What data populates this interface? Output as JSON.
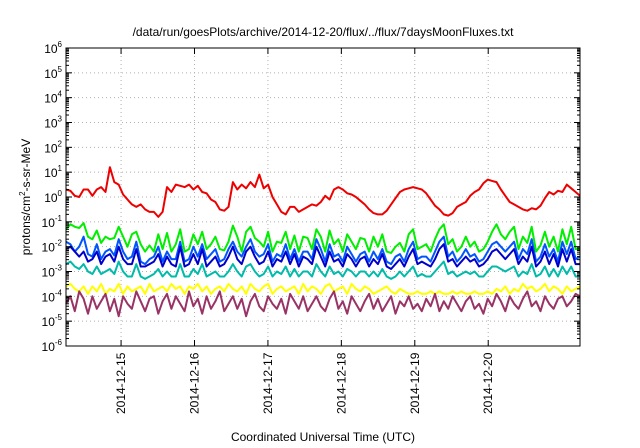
{
  "chart_data": {
    "type": "line",
    "title": "/data/run/goesPlots/archive/2014-12-20/flux/../flux/7daysMoonFluxes.txt",
    "xlabel": "Coordinated Universal Time (UTC)",
    "ylabel": "protons/cm²-s-sr-MeV",
    "ylabel_parts": [
      "protons/cm",
      "2",
      "-s-sr-MeV"
    ],
    "yscale": "log",
    "ylim": [
      1e-06,
      1000000.0
    ],
    "xlim": [
      0,
      7
    ],
    "x_start_tick_offset": 0.75,
    "y_ticks": [
      {
        "exp": "-6",
        "value": 1e-06
      },
      {
        "exp": "-5",
        "value": 1e-05
      },
      {
        "exp": "-4",
        "value": 0.0001
      },
      {
        "exp": "-3",
        "value": 0.001
      },
      {
        "exp": "-2",
        "value": 0.01
      },
      {
        "exp": "-1",
        "value": 0.1
      },
      {
        "exp": "0",
        "value": 1
      },
      {
        "exp": "1",
        "value": 10
      },
      {
        "exp": "2",
        "value": 100
      },
      {
        "exp": "3",
        "value": 1000
      },
      {
        "exp": "4",
        "value": 10000
      },
      {
        "exp": "5",
        "value": 100000
      },
      {
        "exp": "6",
        "value": 1000000
      }
    ],
    "y_tick_base": "10",
    "x_tick_labels": [
      "2014-12-15",
      "2014-12-16",
      "2014-12-17",
      "2014-12-18",
      "2014-12-19",
      "2014-12-20"
    ],
    "grid": true,
    "legend": "none",
    "series": [
      {
        "color": "#ee0000",
        "log_values": [
          0.3,
          0.25,
          0.05,
          0.0,
          0.3,
          0.3,
          0.05,
          0.3,
          0.4,
          0.2,
          1.2,
          0.6,
          0.5,
          0.1,
          -0.1,
          -0.3,
          -0.4,
          -0.3,
          -0.5,
          -0.6,
          -0.6,
          -0.8,
          -0.6,
          0.4,
          0.2,
          0.5,
          0.45,
          0.4,
          0.5,
          0.3,
          0.45,
          0.2,
          0.15,
          -0.1,
          -0.2,
          -0.5,
          -0.55,
          -0.4,
          0.6,
          0.3,
          0.5,
          0.35,
          0.6,
          0.4,
          0.9,
          0.35,
          0.5,
          0.0,
          -0.3,
          -0.6,
          -0.7,
          -0.4,
          -0.4,
          -0.6,
          -0.5,
          -0.4,
          -0.3,
          -0.35,
          -0.2,
          0.05,
          -0.1,
          0.3,
          0.4,
          0.3,
          0.15,
          0.1,
          0.0,
          -0.15,
          -0.3,
          -0.5,
          -0.65,
          -0.7,
          -0.7,
          -0.55,
          -0.3,
          -0.05,
          0.2,
          0.3,
          0.35,
          0.4,
          0.35,
          0.3,
          0.15,
          -0.1,
          -0.35,
          -0.5,
          -0.7,
          -0.75,
          -0.65,
          -0.4,
          -0.3,
          -0.2,
          0.05,
          0.2,
          0.3,
          0.55,
          0.7,
          0.65,
          0.6,
          0.3,
          0.05,
          -0.2,
          -0.3,
          -0.4,
          -0.5,
          -0.55,
          -0.45,
          -0.5,
          -0.35,
          -0.05,
          0.2,
          0.1,
          0.25,
          0.2,
          0.5,
          0.35,
          0.2,
          0.05
        ]
      },
      {
        "color": "#00ee00",
        "log_values": [
          -1.3,
          -1.1,
          -1.2,
          -1.25,
          -1.05,
          -1.6,
          -1.7,
          -1.35,
          -1.85,
          -1.6,
          -1.7,
          -1.65,
          -1.2,
          -1.6,
          -2.0,
          -1.5,
          -1.4,
          -1.9,
          -2.2,
          -1.95,
          -2.2,
          -1.5,
          -2.1,
          -1.45,
          -2.2,
          -1.9,
          -1.3,
          -2.2,
          -2.1,
          -1.5,
          -1.9,
          -1.4,
          -2.1,
          -1.9,
          -1.6,
          -2.1,
          -2.15,
          -1.8,
          -1.15,
          -1.6,
          -2.2,
          -1.4,
          -1.2,
          -1.65,
          -1.8,
          -2.0,
          -1.4,
          -2.2,
          -1.8,
          -1.85,
          -1.4,
          -2.1,
          -1.55,
          -2.2,
          -1.6,
          -1.65,
          -2.1,
          -1.3,
          -1.6,
          -2.2,
          -1.35,
          -1.9,
          -1.7,
          -2.2,
          -1.5,
          -1.8,
          -2.1,
          -1.65,
          -1.7,
          -2.2,
          -1.6,
          -2.0,
          -1.5,
          -2.2,
          -2.25,
          -2.0,
          -1.85,
          -2.2,
          -1.5,
          -1.3,
          -2.1,
          -2.0,
          -1.9,
          -2.2,
          -1.7,
          -1.3,
          -1.1,
          -1.9,
          -1.7,
          -2.2,
          -2.0,
          -1.6,
          -2.0,
          -1.8,
          -2.2,
          -2.1,
          -1.8,
          -1.4,
          -1.1,
          -1.5,
          -1.7,
          -1.4,
          -1.2,
          -2.1,
          -1.6,
          -1.85,
          -1.2,
          -2.2,
          -1.95,
          -1.4,
          -2.0,
          -1.6,
          -2.2,
          -1.3,
          -1.9,
          -1.2,
          -2.1,
          -2.1
        ]
      },
      {
        "color": "#0055ff",
        "log_values": [
          -1.8,
          -1.9,
          -2.2,
          -2.0,
          -1.6,
          -2.3,
          -2.4,
          -1.9,
          -2.5,
          -2.2,
          -2.1,
          -2.35,
          -1.7,
          -2.2,
          -2.5,
          -2.4,
          -1.8,
          -2.6,
          -2.7,
          -2.5,
          -2.4,
          -2.0,
          -2.6,
          -2.2,
          -2.5,
          -2.5,
          -1.8,
          -2.6,
          -2.5,
          -2.0,
          -2.4,
          -1.9,
          -2.5,
          -2.3,
          -2.1,
          -2.6,
          -2.5,
          -2.1,
          -1.8,
          -2.2,
          -2.4,
          -2.0,
          -1.7,
          -2.2,
          -2.4,
          -2.3,
          -1.9,
          -2.6,
          -2.3,
          -2.4,
          -1.9,
          -2.5,
          -2.1,
          -2.6,
          -2.2,
          -2.2,
          -2.5,
          -1.7,
          -2.1,
          -2.6,
          -1.9,
          -2.4,
          -2.3,
          -2.6,
          -2.0,
          -2.3,
          -2.6,
          -2.3,
          -2.2,
          -2.6,
          -2.2,
          -2.5,
          -2.1,
          -2.6,
          -2.7,
          -2.4,
          -2.3,
          -2.6,
          -2.1,
          -1.8,
          -2.5,
          -2.4,
          -2.4,
          -2.6,
          -2.2,
          -1.8,
          -1.6,
          -2.4,
          -2.2,
          -2.6,
          -2.4,
          -2.1,
          -2.4,
          -2.3,
          -2.6,
          -2.5,
          -2.2,
          -1.9,
          -1.8,
          -2.0,
          -2.2,
          -2.0,
          -1.8,
          -2.5,
          -2.1,
          -2.3,
          -1.7,
          -2.6,
          -2.4,
          -1.9,
          -2.4,
          -2.1,
          -2.6,
          -1.8,
          -2.3,
          -1.8,
          -2.5,
          -2.4
        ]
      },
      {
        "color": "#0000cc",
        "log_values": [
          -2.1,
          -2.0,
          -2.2,
          -2.4,
          -2.2,
          -2.6,
          -2.5,
          -2.2,
          -2.7,
          -2.4,
          -2.3,
          -2.6,
          -2.0,
          -2.5,
          -2.7,
          -2.7,
          -2.1,
          -2.8,
          -2.8,
          -2.7,
          -2.6,
          -2.3,
          -2.8,
          -2.4,
          -2.7,
          -2.8,
          -2.0,
          -2.8,
          -2.7,
          -2.3,
          -2.7,
          -2.1,
          -2.8,
          -2.6,
          -2.4,
          -2.8,
          -2.7,
          -2.4,
          -2.0,
          -2.5,
          -2.7,
          -2.2,
          -2.0,
          -2.4,
          -2.7,
          -2.6,
          -2.2,
          -2.8,
          -2.5,
          -2.6,
          -2.2,
          -2.7,
          -2.3,
          -2.8,
          -2.4,
          -2.5,
          -2.7,
          -2.0,
          -2.4,
          -2.8,
          -2.2,
          -2.6,
          -2.5,
          -2.8,
          -2.3,
          -2.5,
          -2.8,
          -2.5,
          -2.4,
          -2.8,
          -2.5,
          -2.7,
          -2.3,
          -2.8,
          -2.9,
          -2.7,
          -2.5,
          -2.8,
          -2.4,
          -2.1,
          -2.7,
          -2.6,
          -2.7,
          -2.8,
          -2.5,
          -2.1,
          -1.9,
          -2.6,
          -2.5,
          -2.8,
          -2.6,
          -2.4,
          -2.6,
          -2.5,
          -2.8,
          -2.7,
          -2.5,
          -2.2,
          -2.1,
          -2.3,
          -2.5,
          -2.3,
          -2.1,
          -2.7,
          -2.4,
          -2.6,
          -2.0,
          -2.8,
          -2.6,
          -2.2,
          -2.7,
          -2.3,
          -2.8,
          -2.1,
          -2.6,
          -2.1,
          -2.7,
          -2.7
        ]
      },
      {
        "color": "#00bbaa",
        "log_values": [
          -2.7,
          -2.6,
          -2.8,
          -2.9,
          -2.7,
          -3.0,
          -3.1,
          -2.8,
          -3.1,
          -3.0,
          -2.9,
          -3.1,
          -2.6,
          -3.0,
          -3.2,
          -3.2,
          -2.7,
          -3.2,
          -3.3,
          -3.2,
          -3.1,
          -2.9,
          -3.2,
          -3.0,
          -3.2,
          -3.2,
          -2.7,
          -3.2,
          -3.2,
          -2.9,
          -3.1,
          -2.7,
          -3.2,
          -3.1,
          -3.0,
          -3.2,
          -3.2,
          -3.0,
          -2.7,
          -3.0,
          -3.2,
          -2.8,
          -2.7,
          -3.0,
          -3.2,
          -3.1,
          -2.8,
          -3.2,
          -3.0,
          -3.1,
          -2.8,
          -3.2,
          -2.9,
          -3.2,
          -3.0,
          -3.0,
          -3.2,
          -2.7,
          -3.0,
          -3.2,
          -2.8,
          -3.1,
          -3.0,
          -3.2,
          -2.9,
          -3.0,
          -3.2,
          -3.0,
          -3.0,
          -3.2,
          -3.0,
          -3.2,
          -2.9,
          -3.2,
          -3.3,
          -3.2,
          -3.0,
          -3.2,
          -3.0,
          -2.8,
          -3.2,
          -3.1,
          -3.2,
          -3.2,
          -3.0,
          -2.8,
          -2.6,
          -3.1,
          -3.0,
          -3.2,
          -3.1,
          -3.0,
          -3.1,
          -3.0,
          -3.2,
          -3.2,
          -3.0,
          -2.8,
          -2.8,
          -2.9,
          -3.0,
          -2.9,
          -2.8,
          -3.2,
          -3.0,
          -3.1,
          -2.7,
          -3.2,
          -3.1,
          -2.8,
          -3.2,
          -2.9,
          -3.2,
          -2.8,
          -3.1,
          -2.8,
          -3.2,
          -3.2
        ]
      },
      {
        "color": "#ffff00",
        "log_values": [
          -3.6,
          -3.5,
          -3.7,
          -3.8,
          -3.6,
          -3.9,
          -3.6,
          -3.8,
          -3.5,
          -3.9,
          -3.7,
          -3.8,
          -3.5,
          -3.9,
          -3.6,
          -3.8,
          -3.7,
          -3.6,
          -3.9,
          -3.5,
          -3.8,
          -3.7,
          -3.6,
          -3.8,
          -3.5,
          -3.7,
          -3.6,
          -3.9,
          -3.6,
          -3.7,
          -3.5,
          -3.8,
          -3.6,
          -3.9,
          -3.7,
          -3.6,
          -3.8,
          -3.5,
          -3.7,
          -3.8,
          -3.6,
          -3.9,
          -3.5,
          -3.7,
          -3.8,
          -3.6,
          -3.5,
          -3.9,
          -3.7,
          -3.6,
          -3.8,
          -3.7,
          -3.6,
          -3.9,
          -3.5,
          -3.8,
          -3.6,
          -3.7,
          -3.9,
          -3.6,
          -3.5,
          -3.8,
          -3.7,
          -3.6,
          -3.9,
          -3.5,
          -3.7,
          -3.8,
          -3.6,
          -3.7,
          -3.9,
          -3.8,
          -3.7,
          -3.6,
          -3.8,
          -3.9,
          -3.7,
          -3.8,
          -3.9,
          -3.9,
          -3.8,
          -3.9,
          -3.9,
          -3.8,
          -3.9,
          -3.8,
          -3.9,
          -3.9,
          -3.8,
          -3.9,
          -3.8,
          -3.9,
          -3.9,
          -3.8,
          -3.9,
          -3.9,
          -3.8,
          -3.9,
          -3.7,
          -3.8,
          -3.6,
          -3.9,
          -3.7,
          -3.8,
          -3.5,
          -3.7,
          -3.6,
          -3.8,
          -3.7,
          -3.5,
          -3.8,
          -3.6,
          -3.7,
          -3.9,
          -3.6,
          -3.8,
          -3.7,
          -3.6
        ]
      },
      {
        "color": "#993366",
        "log_values": [
          -4.3,
          -4.0,
          -4.6,
          -3.8,
          -4.1,
          -4.7,
          -4.0,
          -4.5,
          -4.2,
          -3.9,
          -4.6,
          -4.1,
          -4.8,
          -4.0,
          -4.3,
          -4.5,
          -3.8,
          -4.2,
          -4.6,
          -4.1,
          -4.0,
          -4.7,
          -4.2,
          -3.9,
          -4.5,
          -4.0,
          -4.3,
          -4.6,
          -3.8,
          -4.4,
          -4.1,
          -4.7,
          -4.0,
          -4.5,
          -4.2,
          -3.8,
          -4.6,
          -4.3,
          -4.0,
          -4.5,
          -4.1,
          -4.8,
          -4.2,
          -3.9,
          -4.4,
          -4.6,
          -4.0,
          -4.3,
          -4.5,
          -4.1,
          -4.7,
          -3.9,
          -4.2,
          -4.5,
          -4.0,
          -4.6,
          -4.3,
          -4.0,
          -4.4,
          -4.6,
          -4.1,
          -3.8,
          -4.5,
          -4.2,
          -4.7,
          -4.0,
          -4.3,
          -4.6,
          -4.2,
          -3.9,
          -4.5,
          -4.1,
          -4.6,
          -4.3,
          -4.0,
          -4.7,
          -4.2,
          -4.4,
          -4.0,
          -4.5,
          -4.3,
          -4.6,
          -4.1,
          -4.4,
          -3.9,
          -4.6,
          -4.2,
          -4.5,
          -4.0,
          -4.3,
          -4.6,
          -4.2,
          -4.0,
          -4.5,
          -4.3,
          -4.7,
          -4.1,
          -4.4,
          -3.9,
          -4.2,
          -4.6,
          -4.0,
          -4.3,
          -4.5,
          -4.1,
          -3.8,
          -4.4,
          -4.2,
          -4.6,
          -4.0,
          -4.3,
          -4.5,
          -4.1,
          -4.0,
          -4.4,
          -4.2,
          -3.9,
          -4.0
        ]
      }
    ]
  }
}
